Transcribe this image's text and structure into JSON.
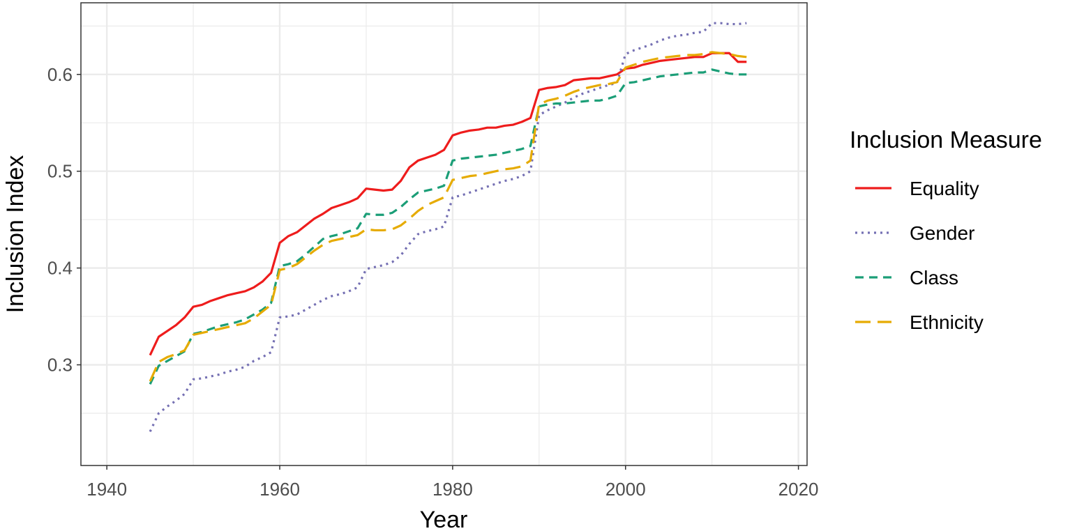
{
  "chart_data": {
    "type": "line",
    "title": "",
    "xlabel": "Year",
    "ylabel": "Inclusion Index",
    "xlim": [
      1937,
      2021
    ],
    "ylim": [
      0.196,
      0.674
    ],
    "x_ticks": [
      1940,
      1960,
      1980,
      2000,
      2020
    ],
    "y_ticks": [
      0.3,
      0.4,
      0.5,
      0.6
    ],
    "grid": true,
    "legend": {
      "title": "Inclusion Measure",
      "placement": "right"
    },
    "x": [
      1945,
      1946,
      1947,
      1948,
      1949,
      1950,
      1951,
      1952,
      1953,
      1954,
      1955,
      1956,
      1957,
      1958,
      1959,
      1960,
      1961,
      1962,
      1963,
      1964,
      1965,
      1966,
      1967,
      1968,
      1969,
      1970,
      1971,
      1972,
      1973,
      1974,
      1975,
      1976,
      1977,
      1978,
      1979,
      1980,
      1981,
      1982,
      1983,
      1984,
      1985,
      1986,
      1987,
      1988,
      1989,
      1990,
      1991,
      1992,
      1993,
      1994,
      1995,
      1996,
      1997,
      1998,
      1999,
      2000,
      2001,
      2002,
      2003,
      2004,
      2005,
      2006,
      2007,
      2008,
      2009,
      2010,
      2011,
      2012,
      2013,
      2014
    ],
    "series": [
      {
        "name": "Equality",
        "color": "#ee1c1c",
        "dash": "solid",
        "values": [
          0.31,
          0.329,
          0.335,
          0.341,
          0.349,
          0.36,
          0.362,
          0.366,
          0.369,
          0.372,
          0.374,
          0.376,
          0.38,
          0.386,
          0.395,
          0.426,
          0.433,
          0.437,
          0.444,
          0.451,
          0.456,
          0.462,
          0.465,
          0.468,
          0.472,
          0.482,
          0.481,
          0.48,
          0.481,
          0.49,
          0.504,
          0.511,
          0.514,
          0.517,
          0.522,
          0.537,
          0.54,
          0.542,
          0.543,
          0.545,
          0.545,
          0.547,
          0.548,
          0.551,
          0.555,
          0.584,
          0.586,
          0.587,
          0.589,
          0.594,
          0.595,
          0.596,
          0.596,
          0.598,
          0.6,
          0.606,
          0.607,
          0.61,
          0.612,
          0.614,
          0.615,
          0.616,
          0.617,
          0.618,
          0.618,
          0.622,
          0.622,
          0.622,
          0.613,
          0.613
        ]
      },
      {
        "name": "Gender",
        "color": "#7570b3",
        "dash": "dotted",
        "values": [
          0.231,
          0.25,
          0.257,
          0.263,
          0.27,
          0.285,
          0.286,
          0.288,
          0.29,
          0.293,
          0.295,
          0.298,
          0.304,
          0.308,
          0.313,
          0.349,
          0.35,
          0.352,
          0.357,
          0.362,
          0.367,
          0.371,
          0.373,
          0.376,
          0.38,
          0.399,
          0.401,
          0.403,
          0.406,
          0.413,
          0.425,
          0.435,
          0.438,
          0.44,
          0.443,
          0.473,
          0.475,
          0.478,
          0.481,
          0.484,
          0.487,
          0.49,
          0.492,
          0.495,
          0.5,
          0.558,
          0.563,
          0.567,
          0.571,
          0.576,
          0.58,
          0.583,
          0.586,
          0.589,
          0.591,
          0.621,
          0.625,
          0.628,
          0.631,
          0.635,
          0.638,
          0.64,
          0.641,
          0.643,
          0.644,
          0.653,
          0.653,
          0.652,
          0.652,
          0.653
        ]
      },
      {
        "name": "Class",
        "color": "#1b9e77",
        "dash": "dashed",
        "values": [
          0.28,
          0.299,
          0.304,
          0.309,
          0.314,
          0.332,
          0.334,
          0.337,
          0.34,
          0.342,
          0.344,
          0.347,
          0.352,
          0.357,
          0.364,
          0.402,
          0.404,
          0.407,
          0.414,
          0.422,
          0.43,
          0.433,
          0.435,
          0.438,
          0.441,
          0.456,
          0.455,
          0.455,
          0.457,
          0.463,
          0.471,
          0.478,
          0.48,
          0.482,
          0.485,
          0.511,
          0.513,
          0.514,
          0.515,
          0.516,
          0.517,
          0.519,
          0.521,
          0.523,
          0.526,
          0.567,
          0.569,
          0.57,
          0.57,
          0.571,
          0.572,
          0.573,
          0.573,
          0.575,
          0.578,
          0.591,
          0.592,
          0.594,
          0.596,
          0.598,
          0.599,
          0.6,
          0.601,
          0.602,
          0.602,
          0.605,
          0.603,
          0.601,
          0.6,
          0.6
        ]
      },
      {
        "name": "Ethnicity",
        "color": "#e6ab02",
        "dash": "longdash",
        "values": [
          0.283,
          0.303,
          0.308,
          0.311,
          0.315,
          0.331,
          0.333,
          0.335,
          0.337,
          0.339,
          0.341,
          0.343,
          0.348,
          0.355,
          0.362,
          0.398,
          0.4,
          0.404,
          0.411,
          0.418,
          0.424,
          0.428,
          0.43,
          0.432,
          0.434,
          0.44,
          0.439,
          0.439,
          0.44,
          0.444,
          0.451,
          0.459,
          0.465,
          0.469,
          0.473,
          0.491,
          0.493,
          0.495,
          0.496,
          0.498,
          0.5,
          0.502,
          0.503,
          0.505,
          0.511,
          0.569,
          0.573,
          0.575,
          0.578,
          0.582,
          0.585,
          0.587,
          0.589,
          0.59,
          0.592,
          0.607,
          0.61,
          0.613,
          0.615,
          0.617,
          0.618,
          0.619,
          0.62,
          0.62,
          0.621,
          0.623,
          0.622,
          0.621,
          0.619,
          0.618
        ]
      }
    ]
  }
}
